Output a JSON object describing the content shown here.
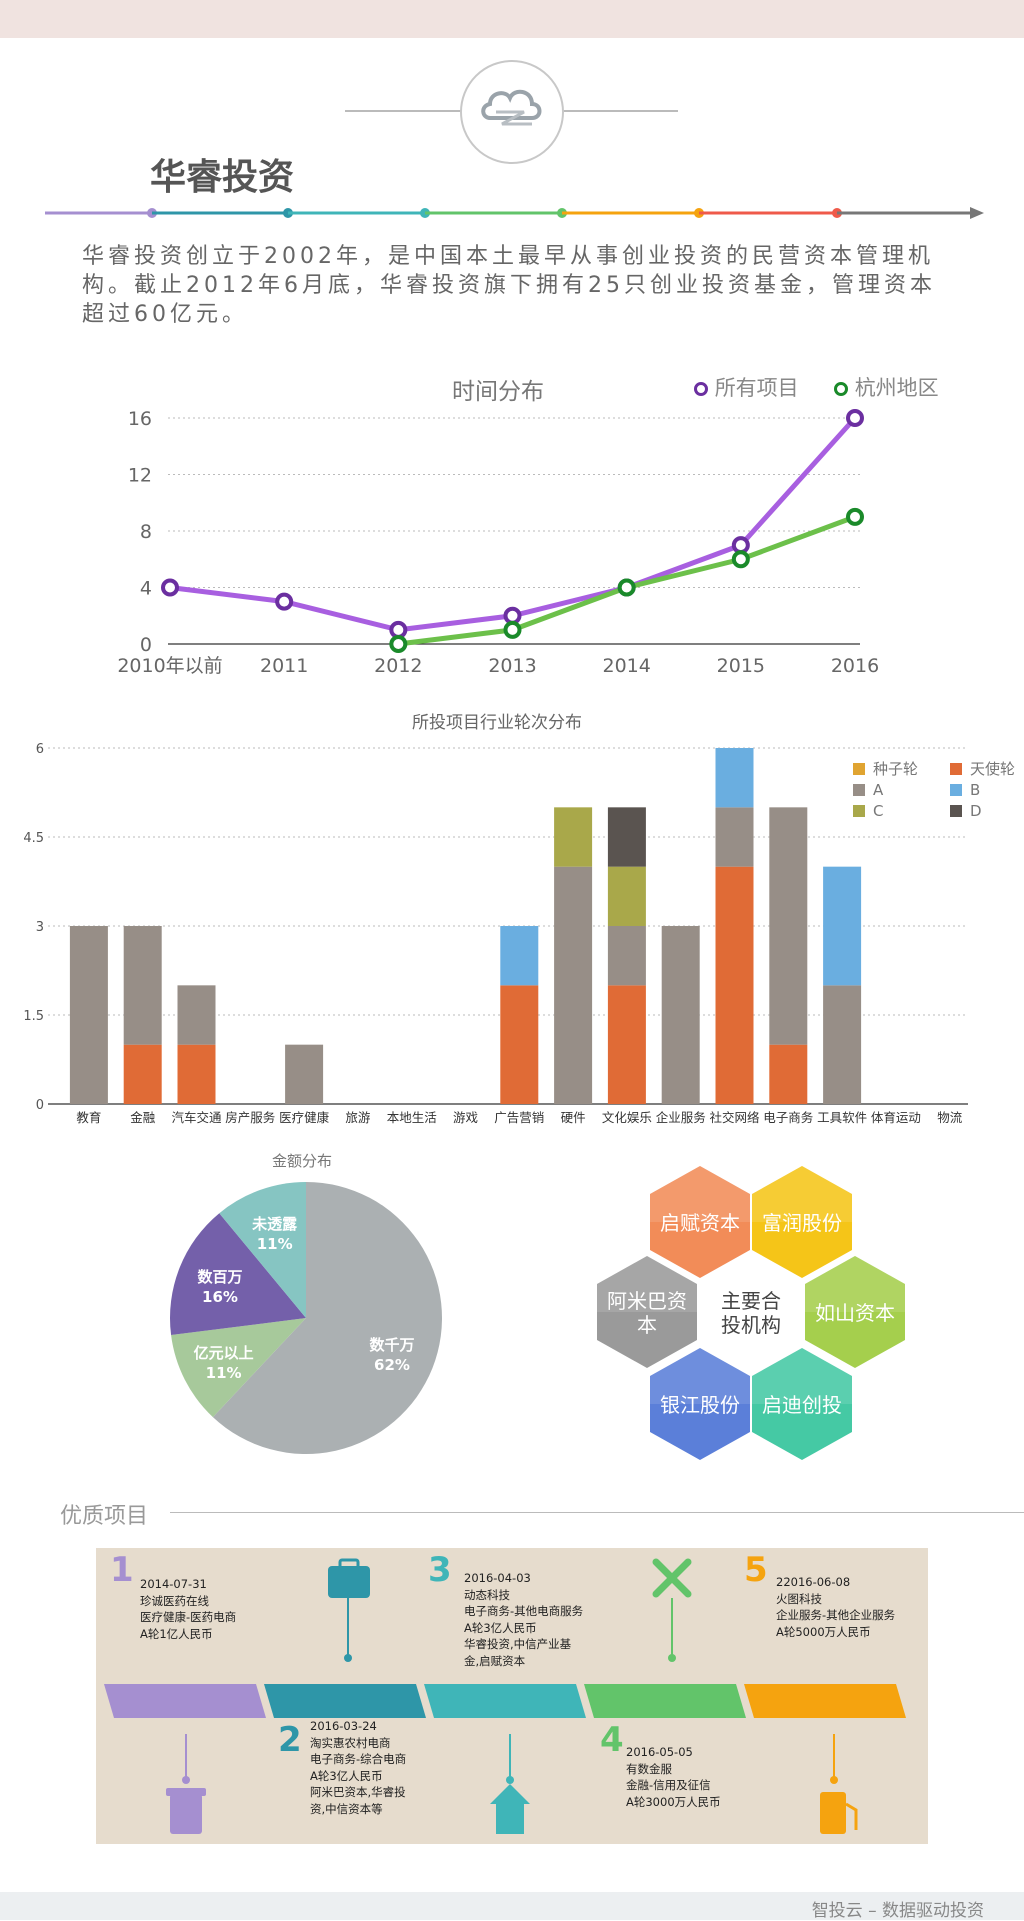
{
  "header": {
    "title": "华睿投资",
    "description": "华睿投资创立于2002年，是中国本土最早从事创业投资的民营资本管理机构。截止2012年6月底，华睿投资旗下拥有25只创业投资基金，管理资本超过60亿元。"
  },
  "colors": {
    "purple": "#a85fe0",
    "green": "#6cc04a",
    "seed": "#e0a431",
    "angel": "#e06b36",
    "a": "#978e87",
    "b": "#6aaee0",
    "c": "#a9a84a",
    "d": "#5a5450"
  },
  "chart_data": [
    {
      "type": "line",
      "title": "时间分布",
      "x": [
        "2010年以前",
        "2011",
        "2012",
        "2013",
        "2014",
        "2015",
        "2016"
      ],
      "ylim": [
        0,
        16
      ],
      "yticks": [
        0,
        4,
        8,
        12,
        16
      ],
      "legend": "top-right",
      "grid": true,
      "series": [
        {
          "name": "所有项目",
          "color": "#a85fe0",
          "marker": "#6b2fa0",
          "values": [
            4,
            3,
            1,
            2,
            4,
            7,
            16
          ]
        },
        {
          "name": "杭州地区",
          "color": "#6cc04a",
          "marker": "#1a8a2a",
          "values": [
            null,
            null,
            0,
            1,
            4,
            6,
            9
          ]
        }
      ]
    },
    {
      "type": "bar",
      "stacked": true,
      "title": "所投项目行业轮次分布",
      "categories": [
        "教育",
        "金融",
        "汽车交通",
        "房产服务",
        "医疗健康",
        "旅游",
        "本地生活",
        "游戏",
        "广告营销",
        "硬件",
        "文化娱乐",
        "企业服务",
        "社交网络",
        "电子商务",
        "工具软件",
        "体育运动",
        "物流"
      ],
      "ylim": [
        0,
        6
      ],
      "yticks": [
        "0",
        "1.5",
        "3",
        "4.5",
        "6"
      ],
      "legend": "top-right",
      "grid": true,
      "series": [
        {
          "name": "种子轮",
          "color": "#e0a431",
          "values": [
            0,
            0,
            0,
            0,
            0,
            0,
            0,
            0,
            0,
            0,
            0,
            0,
            0,
            0,
            0,
            0,
            0
          ]
        },
        {
          "name": "天使轮",
          "color": "#e06b36",
          "values": [
            0,
            1,
            1,
            0,
            0,
            0,
            0,
            0,
            2,
            0,
            2,
            0,
            4,
            1,
            0,
            0,
            0
          ]
        },
        {
          "name": "A",
          "color": "#978e87",
          "values": [
            3,
            2,
            1,
            0,
            1,
            0,
            0,
            0,
            0,
            4,
            1,
            3,
            1,
            4,
            2,
            0,
            0
          ]
        },
        {
          "name": "B",
          "color": "#6aaee0",
          "values": [
            0,
            0,
            0,
            0,
            0,
            0,
            0,
            0,
            1,
            0,
            0,
            0,
            1,
            0,
            2,
            0,
            0
          ]
        },
        {
          "name": "C",
          "color": "#a9a84a",
          "values": [
            0,
            0,
            0,
            0,
            0,
            0,
            0,
            0,
            0,
            1,
            1,
            0,
            0,
            0,
            0,
            0,
            0
          ]
        },
        {
          "name": "D",
          "color": "#5a5450",
          "values": [
            0,
            0,
            0,
            0,
            0,
            0,
            0,
            0,
            0,
            0,
            1,
            0,
            0,
            0,
            0,
            0,
            0
          ]
        }
      ]
    },
    {
      "type": "pie",
      "title": "金额分布",
      "slices": [
        {
          "label": "数千万",
          "pct": "62%",
          "value": 62,
          "color": "#abb0b2"
        },
        {
          "label": "亿元以上",
          "pct": "11%",
          "value": 11,
          "color": "#a7c99b"
        },
        {
          "label": "数百万",
          "pct": "16%",
          "value": 16,
          "color": "#7460aa"
        },
        {
          "label": "未透露",
          "pct": "11%",
          "value": 11,
          "color": "#86c5c2"
        }
      ]
    }
  ],
  "partners": {
    "center": [
      "主要合",
      "投机构"
    ],
    "items": [
      {
        "name": "启赋资本",
        "color": "#f28c58"
      },
      {
        "name": "富润股份",
        "color": "#f5c518"
      },
      {
        "name": "阿米巴资本",
        "color": "#9a9a9a"
      },
      {
        "name": "如山资本",
        "color": "#a5cf4d"
      },
      {
        "name": "银江股份",
        "color": "#5b7fd9"
      },
      {
        "name": "启迪创投",
        "color": "#45c9a4"
      }
    ]
  },
  "featured": {
    "title": "优质项目",
    "projects": [
      {
        "num": "1",
        "color": "#a58fd0",
        "lines": [
          "2014-07-31",
          "珍诚医药在线",
          "医疗健康-医药电商",
          "A轮1亿人民币"
        ]
      },
      {
        "num": "2",
        "color": "#2e96a8",
        "lines": [
          "2016-03-24",
          "淘实惠农村电商",
          "电子商务-综合电商",
          "A轮3亿人民币",
          "阿米巴资本,华睿投",
          "资,中信资本等"
        ]
      },
      {
        "num": "3",
        "color": "#3fb5b8",
        "lines": [
          "2016-04-03",
          "动态科技",
          "电子商务-其他电商服务",
          "A轮3亿人民币",
          "华睿投资,中信产业基",
          "金,启赋资本"
        ]
      },
      {
        "num": "4",
        "color": "#62c46a",
        "lines": [
          "2016-05-05",
          "有数金服",
          "金融-信用及征信",
          "A轮3000万人民币"
        ]
      },
      {
        "num": "5",
        "color": "#f5a30f",
        "lines": [
          "22016-06-08",
          "火图科技",
          "企业服务-其他企业服务",
          "A轮5000万人民币"
        ]
      }
    ]
  },
  "footer": "智投云 – 数据驱动投资"
}
